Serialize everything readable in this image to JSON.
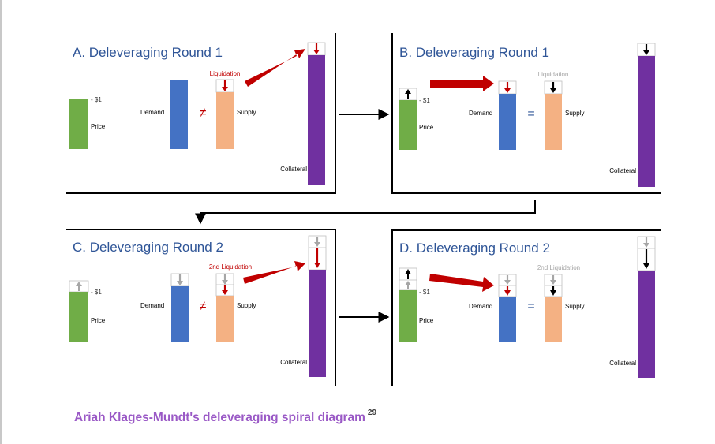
{
  "caption": {
    "text": "Ariah Klages-Mundt's deleveraging spiral diagram",
    "footnote": "29"
  },
  "colors": {
    "title": "#2f5597",
    "price": "#70ad47",
    "demand": "#4472c4",
    "supply": "#f4b183",
    "collateral": "#7030a0",
    "liquidation_arrow": "#c00000",
    "faded": "#a6a6a6",
    "caption": "#9a59c6"
  },
  "panels": [
    {
      "title": "A. Deleveraging Round 1",
      "price_marker": "- $1",
      "price_label": "Price",
      "demand_label": "Demand",
      "relation_symbol": "≠",
      "supply_label": "Supply",
      "liquidation_label": "Liquidation",
      "collateral_label": "Collateral"
    },
    {
      "title": "B. Deleveraging Round 1",
      "price_marker": "- $1",
      "price_label": "Price",
      "demand_label": "Demand",
      "relation_symbol": "=",
      "supply_label": "Supply",
      "liquidation_label": "Liquidation",
      "collateral_label": "Collateral"
    },
    {
      "title": "C. Deleveraging Round 2",
      "price_marker": "- $1",
      "price_label": "Price",
      "demand_label": "Demand",
      "relation_symbol": "≠",
      "supply_label": "Supply",
      "liquidation_label": "2nd Liquidation",
      "collateral_label": "Collateral"
    },
    {
      "title": "D. Deleveraging Round 2",
      "price_marker": "- $1",
      "price_label": "Price",
      "demand_label": "Demand",
      "relation_symbol": "=",
      "supply_label": "Supply",
      "liquidation_label": "2nd Liquidation",
      "collateral_label": "Collateral"
    }
  ]
}
